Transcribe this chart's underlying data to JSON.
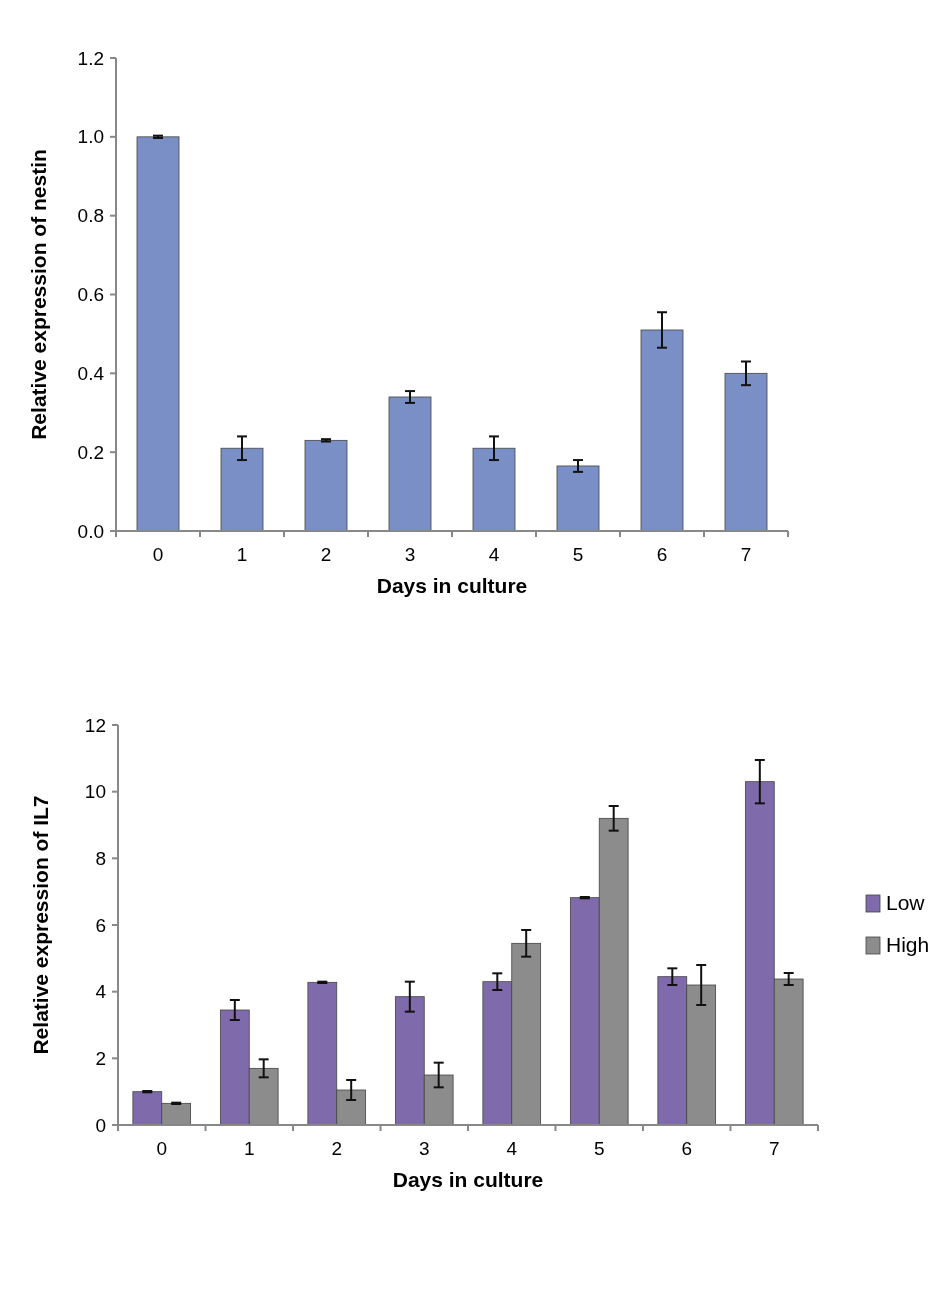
{
  "chart_data": [
    {
      "type": "bar",
      "xlabel": "Days in culture",
      "ylabel": "Relative expression of nestin",
      "categories": [
        "0",
        "1",
        "2",
        "3",
        "4",
        "5",
        "6",
        "7"
      ],
      "series": [
        {
          "color": "#7b8fc7",
          "values": [
            1.0,
            0.21,
            0.23,
            0.34,
            0.21,
            0.165,
            0.51,
            0.4
          ],
          "errors": [
            0.003,
            0.03,
            0.003,
            0.015,
            0.03,
            0.015,
            0.045,
            0.03
          ]
        }
      ],
      "ylim": [
        0,
        1.2
      ],
      "yticks": [
        {
          "value": 0,
          "label": "0.0"
        },
        {
          "value": 0.2,
          "label": "0.2"
        },
        {
          "value": 0.4,
          "label": "0.4"
        },
        {
          "value": 0.6,
          "label": "0.6"
        },
        {
          "value": 0.8,
          "label": "0.8"
        },
        {
          "value": 1,
          "label": "1.0"
        },
        {
          "value": 1.2,
          "label": "1.2"
        }
      ],
      "grid": false,
      "legend": false
    },
    {
      "type": "bar",
      "xlabel": "Days in culture",
      "ylabel": "Relative expression of IL7",
      "categories": [
        "0",
        "1",
        "2",
        "3",
        "4",
        "5",
        "6",
        "7"
      ],
      "series": [
        {
          "name": "Low",
          "color": "#7f6bab",
          "values": [
            1.0,
            3.45,
            4.28,
            3.85,
            4.3,
            6.82,
            4.45,
            10.3
          ],
          "errors": [
            0.02,
            0.3,
            0.02,
            0.45,
            0.25,
            0.02,
            0.25,
            0.65
          ]
        },
        {
          "name": "High",
          "color": "#8c8c8c",
          "values": [
            0.65,
            1.7,
            1.05,
            1.5,
            5.45,
            9.2,
            4.2,
            4.38
          ],
          "errors": [
            0.02,
            0.27,
            0.3,
            0.37,
            0.4,
            0.37,
            0.6,
            0.18
          ]
        }
      ],
      "ylim": [
        0,
        12
      ],
      "yticks": [
        0,
        2,
        4,
        6,
        8,
        10,
        12
      ],
      "grid": false,
      "legend": "right"
    }
  ]
}
